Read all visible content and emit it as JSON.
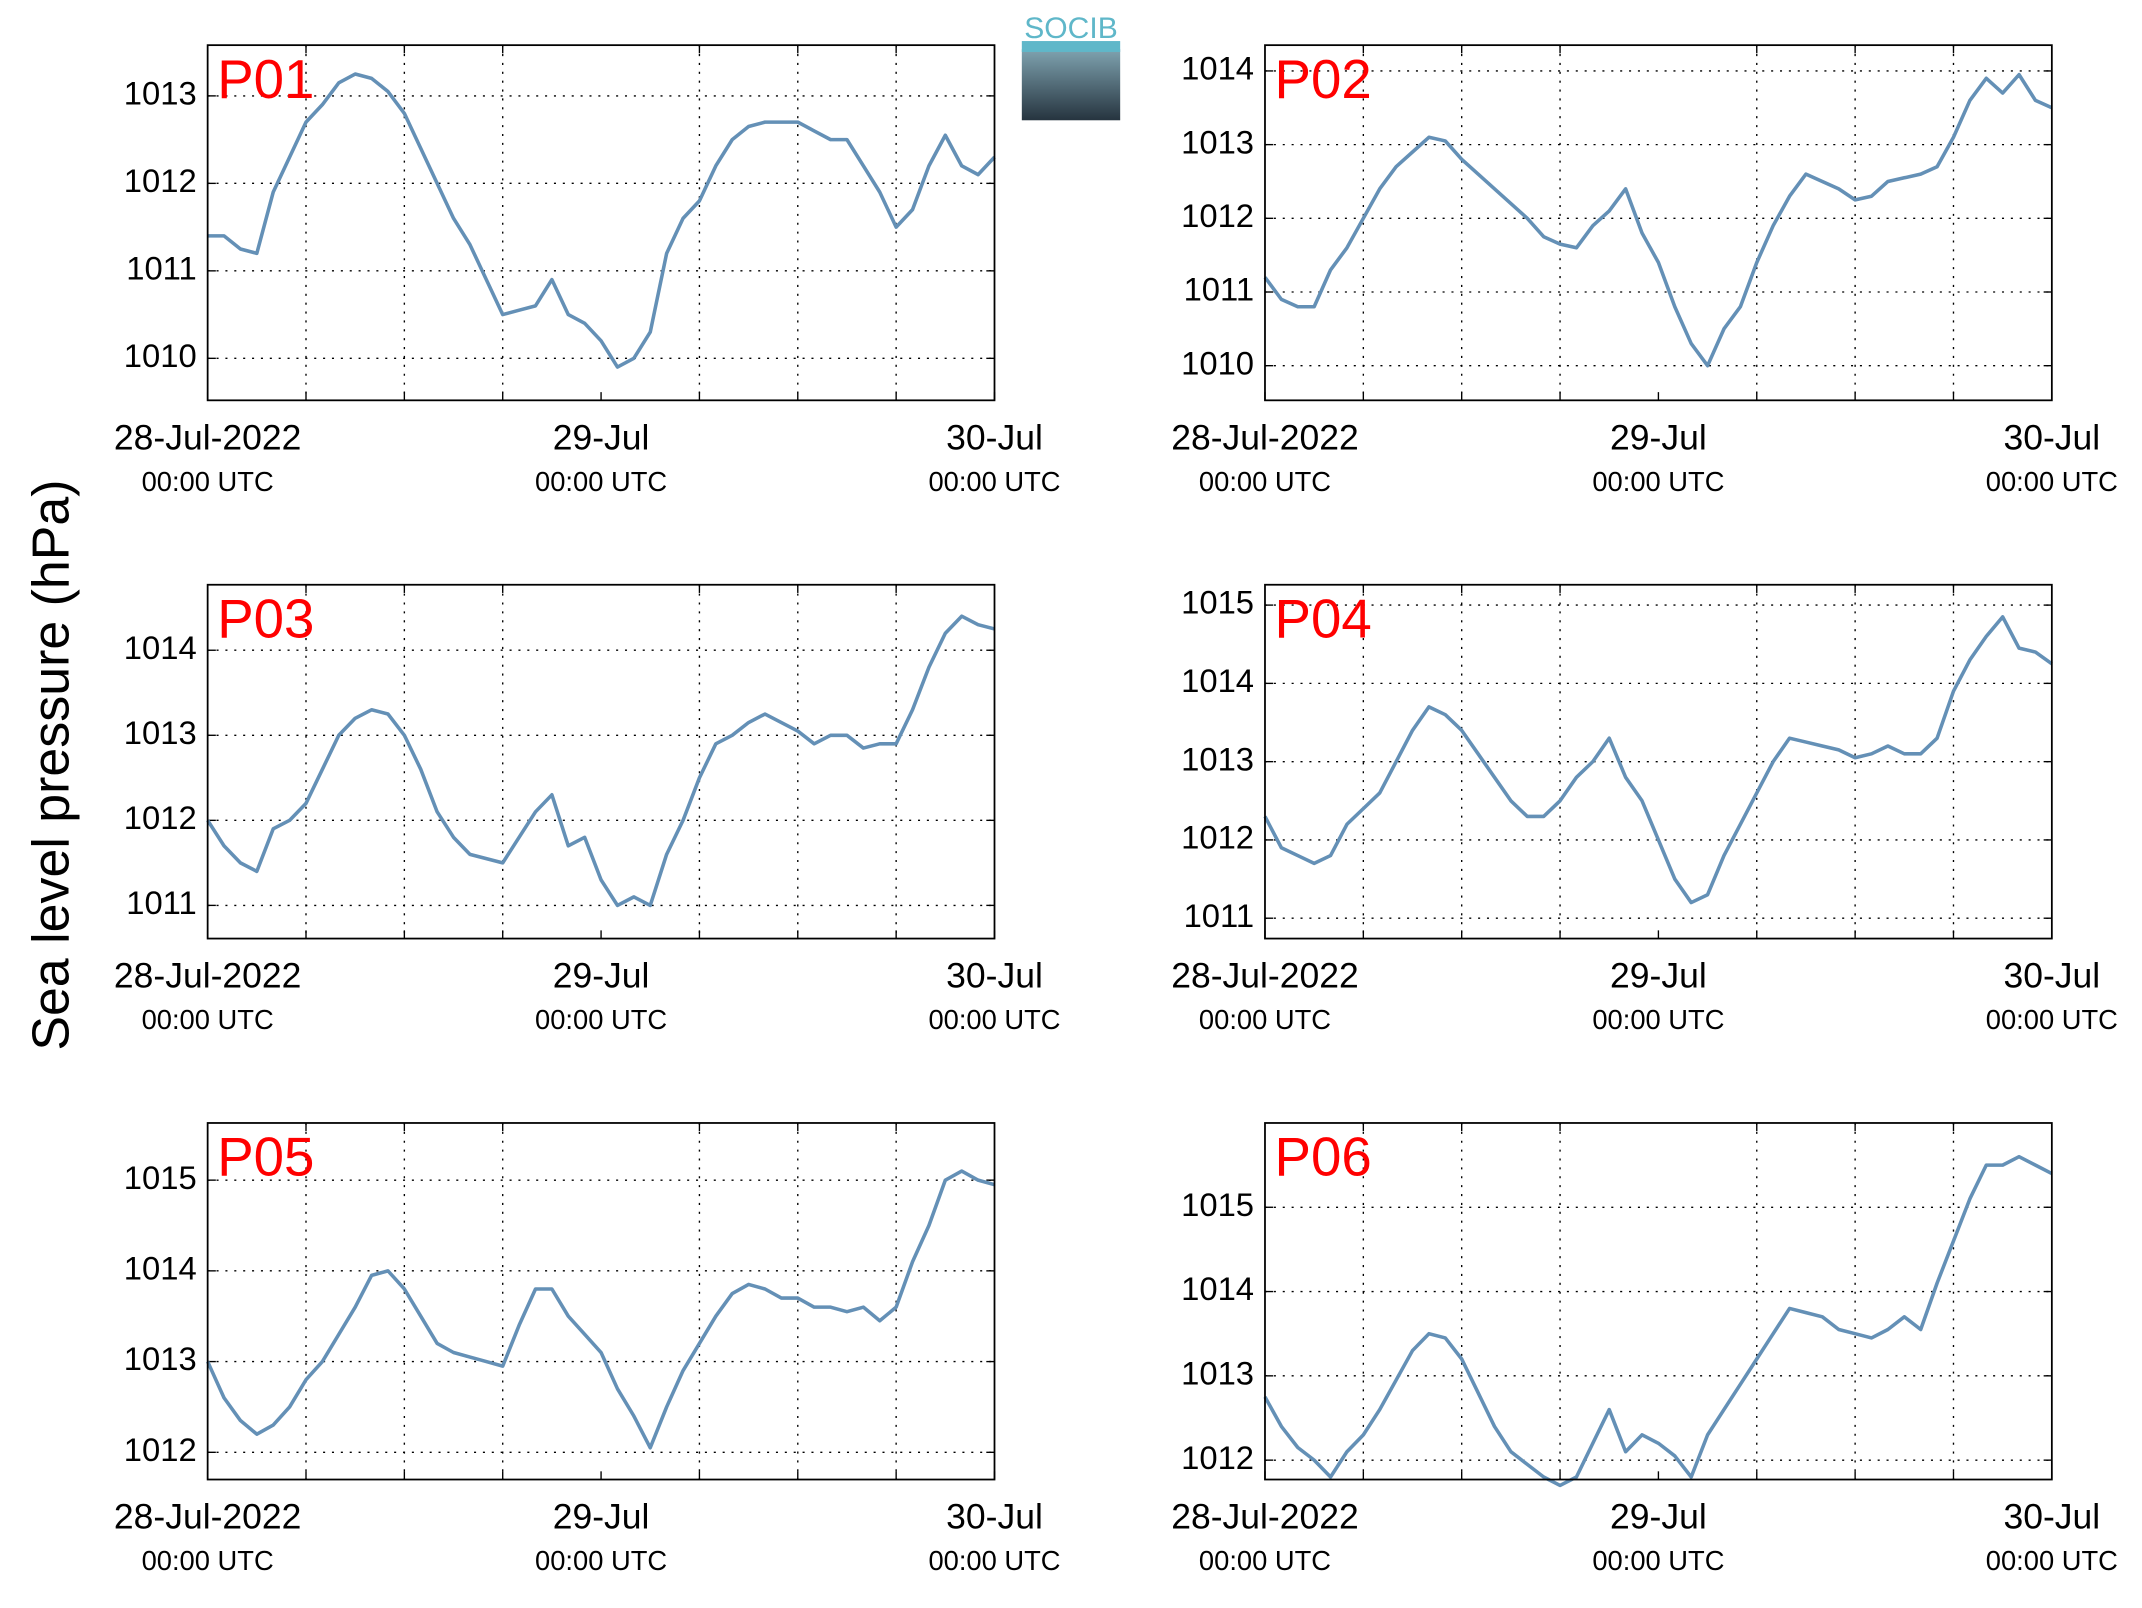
{
  "ylabel": "Sea level pressure (hPa)",
  "logo": "SOCIB",
  "chart_data": [
    {
      "type": "line",
      "title": "P01",
      "color": "#6490b6",
      "x": [
        0,
        1,
        2,
        3,
        4,
        5,
        6,
        7,
        8,
        9,
        10,
        11,
        12,
        13,
        14,
        15,
        16,
        17,
        18,
        19,
        20,
        21,
        22,
        23,
        24,
        25,
        26,
        27,
        28,
        29,
        30,
        31,
        32,
        33,
        34,
        35,
        36,
        37,
        38,
        39,
        40,
        41,
        42,
        43,
        44,
        45,
        46,
        47,
        48
      ],
      "values": [
        1011.4,
        1011.4,
        1011.25,
        1011.2,
        1011.9,
        1012.3,
        1012.7,
        1012.9,
        1013.15,
        1013.25,
        1013.2,
        1013.05,
        1012.8,
        1012.4,
        1012.0,
        1011.6,
        1011.3,
        1010.9,
        1010.5,
        1010.55,
        1010.6,
        1010.9,
        1010.5,
        1010.4,
        1010.2,
        1009.9,
        1010.0,
        1010.3,
        1011.2,
        1011.6,
        1011.8,
        1012.2,
        1012.5,
        1012.65,
        1012.7,
        1012.7,
        1012.7,
        1012.6,
        1012.5,
        1012.5,
        1012.2,
        1011.9,
        1011.5,
        1011.7,
        1012.2,
        1012.55,
        1012.2,
        1012.1,
        1012.3
      ],
      "xlim": [
        0,
        48
      ],
      "xticks": [
        {
          "value": 0,
          "label": "28-Jul-2022",
          "sublabel": "00:00 UTC"
        },
        {
          "value": 24,
          "label": "29-Jul",
          "sublabel": "00:00 UTC"
        },
        {
          "value": 48,
          "label": "30-Jul",
          "sublabel": "00:00 UTC"
        }
      ],
      "xminor": [
        6,
        12,
        18,
        30,
        36,
        42
      ],
      "ylim": [
        1009.52,
        1013.58
      ],
      "yticks": [
        1010,
        1011,
        1012,
        1013
      ],
      "grid": true
    },
    {
      "type": "line",
      "title": "P02",
      "color": "#6490b6",
      "x": [
        0,
        1,
        2,
        3,
        4,
        5,
        6,
        7,
        8,
        9,
        10,
        11,
        12,
        13,
        14,
        15,
        16,
        17,
        18,
        19,
        20,
        21,
        22,
        23,
        24,
        25,
        26,
        27,
        28,
        29,
        30,
        31,
        32,
        33,
        34,
        35,
        36,
        37,
        38,
        39,
        40,
        41,
        42,
        43,
        44,
        45,
        46,
        47,
        48
      ],
      "values": [
        1011.2,
        1010.9,
        1010.8,
        1010.8,
        1011.3,
        1011.6,
        1012.0,
        1012.4,
        1012.7,
        1012.9,
        1013.1,
        1013.05,
        1012.8,
        1012.6,
        1012.4,
        1012.2,
        1012.0,
        1011.75,
        1011.65,
        1011.6,
        1011.9,
        1012.1,
        1012.4,
        1011.8,
        1011.4,
        1010.8,
        1010.3,
        1010.0,
        1010.5,
        1010.8,
        1011.4,
        1011.9,
        1012.3,
        1012.6,
        1012.5,
        1012.4,
        1012.25,
        1012.3,
        1012.5,
        1012.55,
        1012.6,
        1012.7,
        1013.1,
        1013.6,
        1013.9,
        1013.7,
        1013.95,
        1013.6,
        1013.5
      ],
      "xlim": [
        0,
        48
      ],
      "xticks": [
        {
          "value": 0,
          "label": "28-Jul-2022",
          "sublabel": "00:00 UTC"
        },
        {
          "value": 24,
          "label": "29-Jul",
          "sublabel": "00:00 UTC"
        },
        {
          "value": 48,
          "label": "30-Jul",
          "sublabel": "00:00 UTC"
        }
      ],
      "xminor": [
        6,
        12,
        18,
        30,
        36,
        42
      ],
      "ylim": [
        1009.53,
        1014.35
      ],
      "yticks": [
        1010,
        1011,
        1012,
        1013,
        1014
      ],
      "grid": true
    },
    {
      "type": "line",
      "title": "P03",
      "color": "#6490b6",
      "x": [
        0,
        1,
        2,
        3,
        4,
        5,
        6,
        7,
        8,
        9,
        10,
        11,
        12,
        13,
        14,
        15,
        16,
        17,
        18,
        19,
        20,
        21,
        22,
        23,
        24,
        25,
        26,
        27,
        28,
        29,
        30,
        31,
        32,
        33,
        34,
        35,
        36,
        37,
        38,
        39,
        40,
        41,
        42,
        43,
        44,
        45,
        46,
        47,
        48
      ],
      "values": [
        1012.0,
        1011.7,
        1011.5,
        1011.4,
        1011.9,
        1012.0,
        1012.2,
        1012.6,
        1013.0,
        1013.2,
        1013.3,
        1013.25,
        1013.0,
        1012.6,
        1012.1,
        1011.8,
        1011.6,
        1011.55,
        1011.5,
        1011.8,
        1012.1,
        1012.3,
        1011.7,
        1011.8,
        1011.3,
        1011.0,
        1011.1,
        1011.0,
        1011.6,
        1012.0,
        1012.5,
        1012.9,
        1013.0,
        1013.15,
        1013.25,
        1013.15,
        1013.05,
        1012.9,
        1013.0,
        1013.0,
        1012.85,
        1012.9,
        1012.9,
        1013.3,
        1013.8,
        1014.2,
        1014.4,
        1014.3,
        1014.25
      ],
      "xlim": [
        0,
        48
      ],
      "xticks": [
        {
          "value": 0,
          "label": "28-Jul-2022",
          "sublabel": "00:00 UTC"
        },
        {
          "value": 24,
          "label": "29-Jul",
          "sublabel": "00:00 UTC"
        },
        {
          "value": 48,
          "label": "30-Jul",
          "sublabel": "00:00 UTC"
        }
      ],
      "xminor": [
        6,
        12,
        18,
        30,
        36,
        42
      ],
      "ylim": [
        1010.61,
        1014.77
      ],
      "yticks": [
        1011,
        1012,
        1013,
        1014
      ],
      "grid": true
    },
    {
      "type": "line",
      "title": "P04",
      "color": "#6490b6",
      "x": [
        0,
        1,
        2,
        3,
        4,
        5,
        6,
        7,
        8,
        9,
        10,
        11,
        12,
        13,
        14,
        15,
        16,
        17,
        18,
        19,
        20,
        21,
        22,
        23,
        24,
        25,
        26,
        27,
        28,
        29,
        30,
        31,
        32,
        33,
        34,
        35,
        36,
        37,
        38,
        39,
        40,
        41,
        42,
        43,
        44,
        45,
        46,
        47,
        48
      ],
      "values": [
        1012.3,
        1011.9,
        1011.8,
        1011.7,
        1011.8,
        1012.2,
        1012.4,
        1012.6,
        1013.0,
        1013.4,
        1013.7,
        1013.6,
        1013.4,
        1013.1,
        1012.8,
        1012.5,
        1012.3,
        1012.3,
        1012.5,
        1012.8,
        1013.0,
        1013.3,
        1012.8,
        1012.5,
        1012.0,
        1011.5,
        1011.2,
        1011.3,
        1011.8,
        1012.2,
        1012.6,
        1013.0,
        1013.3,
        1013.25,
        1013.2,
        1013.15,
        1013.05,
        1013.1,
        1013.2,
        1013.1,
        1013.1,
        1013.3,
        1013.9,
        1014.3,
        1014.6,
        1014.85,
        1014.45,
        1014.4,
        1014.25
      ],
      "xlim": [
        0,
        48
      ],
      "xticks": [
        {
          "value": 0,
          "label": "28-Jul-2022",
          "sublabel": "00:00 UTC"
        },
        {
          "value": 24,
          "label": "29-Jul",
          "sublabel": "00:00 UTC"
        },
        {
          "value": 48,
          "label": "30-Jul",
          "sublabel": "00:00 UTC"
        }
      ],
      "xminor": [
        6,
        12,
        18,
        30,
        36,
        42
      ],
      "ylim": [
        1010.74,
        1015.26
      ],
      "yticks": [
        1011,
        1012,
        1013,
        1014,
        1015
      ],
      "grid": true
    },
    {
      "type": "line",
      "title": "P05",
      "color": "#6490b6",
      "x": [
        0,
        1,
        2,
        3,
        4,
        5,
        6,
        7,
        8,
        9,
        10,
        11,
        12,
        13,
        14,
        15,
        16,
        17,
        18,
        19,
        20,
        21,
        22,
        23,
        24,
        25,
        26,
        27,
        28,
        29,
        30,
        31,
        32,
        33,
        34,
        35,
        36,
        37,
        38,
        39,
        40,
        41,
        42,
        43,
        44,
        45,
        46,
        47,
        48
      ],
      "values": [
        1013.0,
        1012.6,
        1012.35,
        1012.2,
        1012.3,
        1012.5,
        1012.8,
        1013.0,
        1013.3,
        1013.6,
        1013.95,
        1014.0,
        1013.8,
        1013.5,
        1013.2,
        1013.1,
        1013.05,
        1013.0,
        1012.95,
        1013.4,
        1013.8,
        1013.8,
        1013.5,
        1013.3,
        1013.1,
        1012.7,
        1012.4,
        1012.05,
        1012.5,
        1012.9,
        1013.2,
        1013.5,
        1013.75,
        1013.85,
        1013.8,
        1013.7,
        1013.7,
        1013.6,
        1013.6,
        1013.55,
        1013.6,
        1013.45,
        1013.6,
        1014.1,
        1014.5,
        1015.0,
        1015.1,
        1015.0,
        1014.95
      ],
      "xlim": [
        0,
        48
      ],
      "xticks": [
        {
          "value": 0,
          "label": "28-Jul-2022",
          "sublabel": "00:00 UTC"
        },
        {
          "value": 24,
          "label": "29-Jul",
          "sublabel": "00:00 UTC"
        },
        {
          "value": 48,
          "label": "30-Jul",
          "sublabel": "00:00 UTC"
        }
      ],
      "xminor": [
        6,
        12,
        18,
        30,
        36,
        42
      ],
      "ylim": [
        1011.7,
        1015.63
      ],
      "yticks": [
        1012,
        1013,
        1014,
        1015
      ],
      "grid": true
    },
    {
      "type": "line",
      "title": "P06",
      "color": "#6490b6",
      "x": [
        0,
        1,
        2,
        3,
        4,
        5,
        6,
        7,
        8,
        9,
        10,
        11,
        12,
        13,
        14,
        15,
        16,
        17,
        18,
        19,
        20,
        21,
        22,
        23,
        24,
        25,
        26,
        27,
        28,
        29,
        30,
        31,
        32,
        33,
        34,
        35,
        36,
        37,
        38,
        39,
        40,
        41,
        42,
        43,
        44,
        45,
        46,
        47,
        48
      ],
      "values": [
        1012.75,
        1012.4,
        1012.15,
        1012.0,
        1011.8,
        1012.1,
        1012.3,
        1012.6,
        1012.95,
        1013.3,
        1013.5,
        1013.45,
        1013.2,
        1012.8,
        1012.4,
        1012.1,
        1011.95,
        1011.8,
        1011.7,
        1011.8,
        1012.2,
        1012.6,
        1012.1,
        1012.3,
        1012.2,
        1012.05,
        1011.8,
        1012.3,
        1012.6,
        1012.9,
        1013.2,
        1013.5,
        1013.8,
        1013.75,
        1013.7,
        1013.55,
        1013.5,
        1013.45,
        1013.55,
        1013.7,
        1013.55,
        1014.1,
        1014.6,
        1015.1,
        1015.5,
        1015.5,
        1015.6,
        1015.5,
        1015.4
      ],
      "xlim": [
        0,
        48
      ],
      "xticks": [
        {
          "value": 0,
          "label": "28-Jul-2022",
          "sublabel": "00:00 UTC"
        },
        {
          "value": 24,
          "label": "29-Jul",
          "sublabel": "00:00 UTC"
        },
        {
          "value": 48,
          "label": "30-Jul",
          "sublabel": "00:00 UTC"
        }
      ],
      "xminor": [
        6,
        12,
        18,
        30,
        36,
        42
      ],
      "ylim": [
        1011.77,
        1016.0
      ],
      "yticks": [
        1012,
        1013,
        1014,
        1015
      ],
      "grid": true
    }
  ]
}
